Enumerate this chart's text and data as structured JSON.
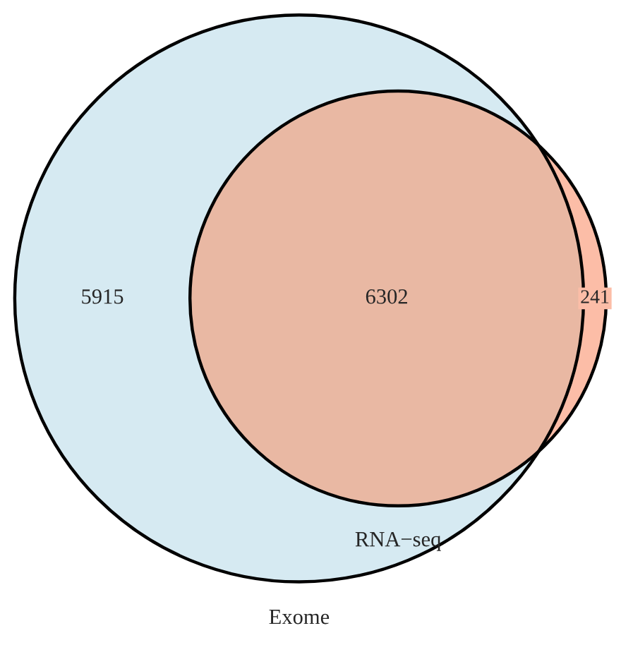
{
  "chart_data": {
    "type": "other",
    "categories": [
      null,
      null,
      null
    ],
    "values": [
      5915,
      6302,
      241
    ],
    "colors": [
      "#d6eaf2",
      "#e9b8a3",
      "#fcbda7"
    ],
    "data_labels": true,
    "annotations": [
      "RNA−seq",
      "Exome"
    ]
  }
}
